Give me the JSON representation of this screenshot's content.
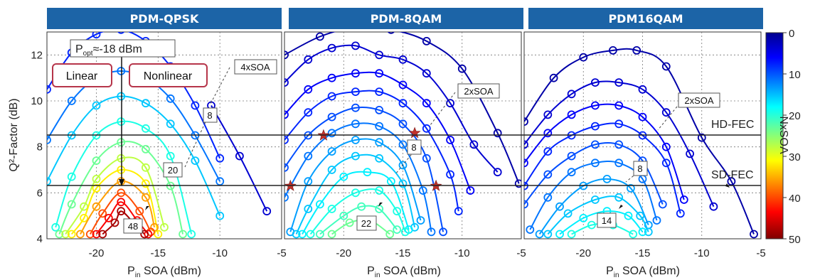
{
  "chart_data": [
    {
      "type": "line",
      "title": "PDM-QPSK",
      "xlabel": "Pin SOA (dBm)",
      "ylabel": "Q²-Factor (dB)",
      "xlim": [
        -24,
        -5
      ],
      "ylim": [
        4,
        13
      ],
      "xticks": [
        "-20",
        "-15",
        "-10",
        "-5"
      ],
      "yticks": [
        "4",
        "6",
        "8",
        "10",
        "12"
      ],
      "grid": true,
      "series": [
        {
          "n": 4,
          "x": [
            -10.7,
            -8.4,
            -6.2
          ],
          "y": [
            9.8,
            7.6,
            5.2
          ]
        },
        {
          "n": 8,
          "x": [
            -24,
            -22,
            -20,
            -18,
            -16,
            -14,
            -12,
            -10
          ],
          "y": [
            10.5,
            12.1,
            12.9,
            13.1,
            12.6,
            11.5,
            9.8,
            7.5
          ]
        },
        {
          "n": 12,
          "x": [
            -24,
            -22,
            -20,
            -18,
            -16,
            -14,
            -12,
            -10
          ],
          "y": [
            8.3,
            10.0,
            11.0,
            11.3,
            11.0,
            10.1,
            8.5,
            6.5
          ]
        },
        {
          "n": 16,
          "x": [
            -24,
            -22,
            -20,
            -18,
            -16,
            -14,
            -12,
            -10
          ],
          "y": [
            6.5,
            8.5,
            9.8,
            10.2,
            9.9,
            9.0,
            7.4,
            5.0
          ]
        },
        {
          "n": 20,
          "x": [
            -23.3,
            -22,
            -20,
            -18,
            -16,
            -14,
            -12.3
          ],
          "y": [
            4.5,
            6.7,
            8.5,
            9.1,
            8.8,
            7.6,
            4.2
          ]
        },
        {
          "n": 24,
          "x": [
            -23,
            -22,
            -20,
            -18,
            -16,
            -14,
            -13
          ],
          "y": [
            4.2,
            5.5,
            7.4,
            8.2,
            7.9,
            6.3,
            4.2
          ]
        },
        {
          "n": 28,
          "x": [
            -22.5,
            -21,
            -20,
            -18,
            -16,
            -14.5
          ],
          "y": [
            4.2,
            5.4,
            6.6,
            7.5,
            7.1,
            4.5
          ]
        },
        {
          "n": 32,
          "x": [
            -22,
            -21,
            -20,
            -18,
            -16,
            -15
          ],
          "y": [
            4.2,
            4.9,
            6.2,
            7.0,
            6.4,
            4.2
          ]
        },
        {
          "n": 36,
          "x": [
            -21.3,
            -20,
            -18,
            -16,
            -15.3
          ],
          "y": [
            4.2,
            5.4,
            6.5,
            5.8,
            4.5
          ]
        },
        {
          "n": 40,
          "x": [
            -20.5,
            -19.5,
            -18,
            -16.5,
            -15.6
          ],
          "y": [
            4.2,
            5.1,
            6.0,
            5.2,
            4.3
          ]
        },
        {
          "n": 44,
          "x": [
            -20,
            -19,
            -18,
            -16.7,
            -15.8
          ],
          "y": [
            4.2,
            4.9,
            5.6,
            4.8,
            4.2
          ]
        },
        {
          "n": 48,
          "x": [
            -19.5,
            -18.5,
            -18,
            -17,
            -16.1
          ],
          "y": [
            4.2,
            4.7,
            5.2,
            4.7,
            4.2
          ]
        }
      ],
      "annotations": [
        {
          "text": "4xSOA"
        },
        {
          "text": "8"
        },
        {
          "text": "20"
        },
        {
          "text": "48"
        },
        {
          "text": "Pₒₚₜ≈-18 dBm"
        },
        {
          "text": "Linear"
        },
        {
          "text": "Nonlinear"
        }
      ]
    },
    {
      "type": "line",
      "title": "PDM-8QAM",
      "xlabel": "Pin SOA (dBm)",
      "xlim": [
        -25,
        -5
      ],
      "ylim": [
        4,
        13
      ],
      "xticks": [
        "-20",
        "-15",
        "-10",
        "-5"
      ],
      "grid": true,
      "series": [
        {
          "n": 2,
          "x": [
            -25,
            -22,
            -19,
            -16,
            -13,
            -10,
            -7,
            -5.2
          ],
          "y": [
            12.0,
            12.8,
            13.2,
            13.1,
            12.6,
            11.4,
            8.6,
            6.4
          ]
        },
        {
          "n": 4,
          "x": [
            -25,
            -23,
            -21,
            -19,
            -17,
            -15,
            -13,
            -11,
            -9,
            -7
          ],
          "y": [
            10.8,
            11.8,
            12.3,
            12.4,
            12.0,
            11.8,
            11.2,
            9.9,
            8.1,
            6.9
          ]
        },
        {
          "n": 6,
          "x": [
            -25,
            -23,
            -21,
            -19,
            -17,
            -15,
            -13,
            -11,
            -9.3
          ],
          "y": [
            9.4,
            10.5,
            11.0,
            11.2,
            11.2,
            10.7,
            9.9,
            8.3,
            6.1
          ]
        },
        {
          "n": 8,
          "x": [
            -25,
            -23,
            -21,
            -19,
            -17,
            -15,
            -13,
            -11,
            -10.3
          ],
          "y": [
            8.3,
            9.5,
            10.2,
            10.4,
            10.4,
            9.9,
            8.8,
            6.8,
            5.2
          ]
        },
        {
          "n": 10,
          "x": [
            -25,
            -23,
            -21,
            -19,
            -17,
            -15,
            -13,
            -11.6
          ],
          "y": [
            7.1,
            8.5,
            9.3,
            9.7,
            9.6,
            9.0,
            7.5,
            4.3
          ]
        },
        {
          "n": 12,
          "x": [
            -25,
            -23,
            -21,
            -19,
            -17,
            -15,
            -13.3,
            -12.6
          ],
          "y": [
            5.8,
            7.6,
            8.6,
            9.0,
            8.9,
            8.1,
            6.1,
            4.3
          ]
        },
        {
          "n": 14,
          "x": [
            -24.5,
            -23,
            -21,
            -19,
            -17,
            -15,
            -13.5
          ],
          "y": [
            4.3,
            6.5,
            7.8,
            8.3,
            8.2,
            7.2,
            4.8
          ]
        },
        {
          "n": 16,
          "x": [
            -24,
            -23,
            -21,
            -19,
            -17,
            -15,
            -14
          ],
          "y": [
            4.2,
            5.3,
            7.0,
            7.6,
            7.5,
            6.4,
            4.5
          ]
        },
        {
          "n": 18,
          "x": [
            -23.5,
            -22,
            -20,
            -18,
            -16,
            -14.5
          ],
          "y": [
            4.2,
            5.5,
            6.7,
            6.9,
            6.5,
            4.4
          ]
        },
        {
          "n": 20,
          "x": [
            -22.8,
            -21,
            -19,
            -17,
            -15.5,
            -14.8
          ],
          "y": [
            4.2,
            5.3,
            6.0,
            6.1,
            5.2,
            4.3
          ]
        },
        {
          "n": 22,
          "x": [
            -22,
            -20,
            -18.5,
            -17,
            -15.5
          ],
          "y": [
            4.2,
            5.0,
            5.4,
            5.3,
            4.4
          ]
        },
        {
          "n": 24,
          "x": [
            -21,
            -19.5,
            -17.8,
            -16.1
          ],
          "y": [
            4.2,
            4.7,
            4.8,
            4.2
          ]
        }
      ],
      "markers": [
        {
          "x": -21.7,
          "y": 8.5,
          "symbol": "star"
        },
        {
          "x": -14,
          "y": 8.6,
          "symbol": "star"
        },
        {
          "x": -24.5,
          "y": 6.3,
          "symbol": "star"
        },
        {
          "x": -12.2,
          "y": 6.3,
          "symbol": "star"
        }
      ],
      "annotations": [
        {
          "text": "2xSOA"
        },
        {
          "text": "8"
        },
        {
          "text": "22"
        }
      ]
    },
    {
      "type": "line",
      "title": "PDM16QAM",
      "xlabel": "Pin SOA (dBm)",
      "xlim": [
        -25,
        -5
      ],
      "ylim": [
        4,
        13
      ],
      "xticks": [
        "-20",
        "-15",
        "-10",
        "-5"
      ],
      "grid": true,
      "series": [
        {
          "n": 2,
          "x": [
            -25,
            -22.5,
            -20,
            -17.5,
            -15.5,
            -13,
            -10,
            -7.5,
            -5.6
          ],
          "y": [
            9.1,
            11.0,
            11.9,
            12.2,
            12.2,
            11.5,
            8.4,
            6.5,
            4.2
          ]
        },
        {
          "n": 4,
          "x": [
            -25,
            -23,
            -21,
            -19,
            -17,
            -15,
            -13,
            -11,
            -9
          ],
          "y": [
            8.1,
            9.4,
            10.3,
            10.8,
            10.8,
            10.5,
            9.5,
            7.7,
            5.4
          ]
        },
        {
          "n": 6,
          "x": [
            -25,
            -23,
            -21,
            -19,
            -17,
            -15,
            -13,
            -11.5
          ],
          "y": [
            7.3,
            8.6,
            9.4,
            9.8,
            9.8,
            9.3,
            8.0,
            5.7
          ]
        },
        {
          "n": 8,
          "x": [
            -25,
            -23,
            -21,
            -19,
            -17,
            -15,
            -13,
            -11.8
          ],
          "y": [
            6.3,
            7.8,
            8.5,
            8.9,
            9.0,
            8.5,
            7.3,
            5.1
          ]
        },
        {
          "n": 10,
          "x": [
            -25,
            -23,
            -21,
            -19,
            -17,
            -15,
            -13.3
          ],
          "y": [
            5.5,
            6.8,
            7.6,
            8.1,
            8.1,
            7.4,
            5.5
          ]
        },
        {
          "n": 12,
          "x": [
            -24.5,
            -23,
            -21,
            -19,
            -17,
            -15,
            -13.8
          ],
          "y": [
            4.4,
            5.8,
            6.9,
            7.3,
            7.3,
            6.6,
            4.8
          ]
        },
        {
          "n": 14,
          "x": [
            -23.7,
            -22,
            -20,
            -18,
            -16,
            -14.5
          ],
          "y": [
            4.2,
            5.4,
            6.3,
            6.6,
            6.2,
            4.6
          ]
        },
        {
          "n": 16,
          "x": [
            -23,
            -21.3,
            -19,
            -17,
            -15.2,
            -14.5
          ],
          "y": [
            4.2,
            5.1,
            5.7,
            5.8,
            5.0,
            4.3
          ]
        },
        {
          "n": 18,
          "x": [
            -22,
            -20,
            -18,
            -16.2,
            -15
          ],
          "y": [
            4.2,
            4.9,
            5.2,
            5.0,
            4.3
          ]
        },
        {
          "n": 20,
          "x": [
            -21,
            -19.3,
            -17.5,
            -15.8
          ],
          "y": [
            4.2,
            4.6,
            4.6,
            4.2
          ]
        }
      ],
      "annotations": [
        {
          "text": "2xSOA"
        },
        {
          "text": "8"
        },
        {
          "text": "14"
        }
      ]
    }
  ],
  "thresholds": {
    "hd_fec": {
      "label": "HD-FEC",
      "y": 8.5
    },
    "sd_fec": {
      "label": "SD-FEC",
      "y": 6.3
    }
  },
  "colorbar": {
    "label": "NxSOA",
    "min": 0,
    "max": 50,
    "ticks": [
      "0",
      "10",
      "20",
      "30",
      "40",
      "50"
    ],
    "colormap": "jet"
  },
  "colors": {
    "title_bg": "#1c64a7",
    "grid": "#777777",
    "marker_star": "#c0312b",
    "annot_red": "#b6354a"
  }
}
